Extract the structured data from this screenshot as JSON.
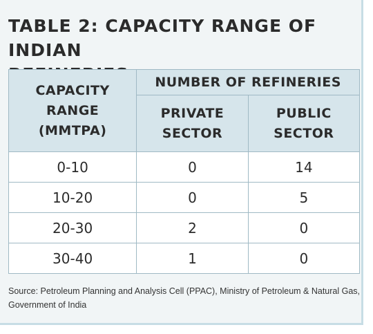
{
  "title": {
    "line1": "TABLE 2: CAPACITY RANGE OF INDIAN",
    "line2": "REFINERIES"
  },
  "table": {
    "headers": {
      "capacity_range": [
        "CAPACITY",
        "RANGE",
        "(MMTPA)"
      ],
      "number_of_refineries": "NUMBER OF REFINERIES",
      "private_sector": [
        "PRIVATE",
        "SECTOR"
      ],
      "public_sector": [
        "PUBLIC",
        "SECTOR"
      ]
    },
    "rows": [
      {
        "range": "0-10",
        "private": "0",
        "public": "14"
      },
      {
        "range": "10-20",
        "private": "0",
        "public": "5"
      },
      {
        "range": "20-30",
        "private": "2",
        "public": "0"
      },
      {
        "range": "30-40",
        "private": "1",
        "public": "0"
      }
    ]
  },
  "source": "Source: Petroleum Planning and Analysis Cell (PPAC), Ministry of Petroleum & Natural Gas, Government of India"
}
